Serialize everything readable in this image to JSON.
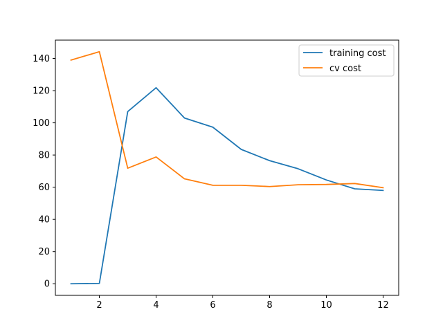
{
  "chart_data": {
    "type": "line",
    "title": "",
    "xlabel": "",
    "ylabel": "",
    "x": [
      1,
      2,
      3,
      4,
      5,
      6,
      7,
      8,
      9,
      10,
      11,
      12
    ],
    "series": [
      {
        "name": "training cost",
        "color": "#1f77b4",
        "values": [
          0.0,
          0.2,
          107.0,
          121.8,
          103.0,
          97.3,
          83.5,
          76.5,
          71.5,
          64.5,
          59.0,
          58.0
        ]
      },
      {
        "name": "cv cost",
        "color": "#ff7f0e",
        "values": [
          139.0,
          144.2,
          71.8,
          78.8,
          65.2,
          61.2,
          61.2,
          60.4,
          61.5,
          61.7,
          62.3,
          59.7
        ]
      }
    ],
    "xlim": [
      0.45,
      12.55
    ],
    "ylim": [
      -7.2,
      151.4
    ],
    "xticks": [
      2,
      4,
      6,
      8,
      10,
      12
    ],
    "yticks": [
      0,
      20,
      40,
      60,
      80,
      100,
      120,
      140
    ],
    "grid": false,
    "legend": {
      "location": "top-right"
    }
  }
}
